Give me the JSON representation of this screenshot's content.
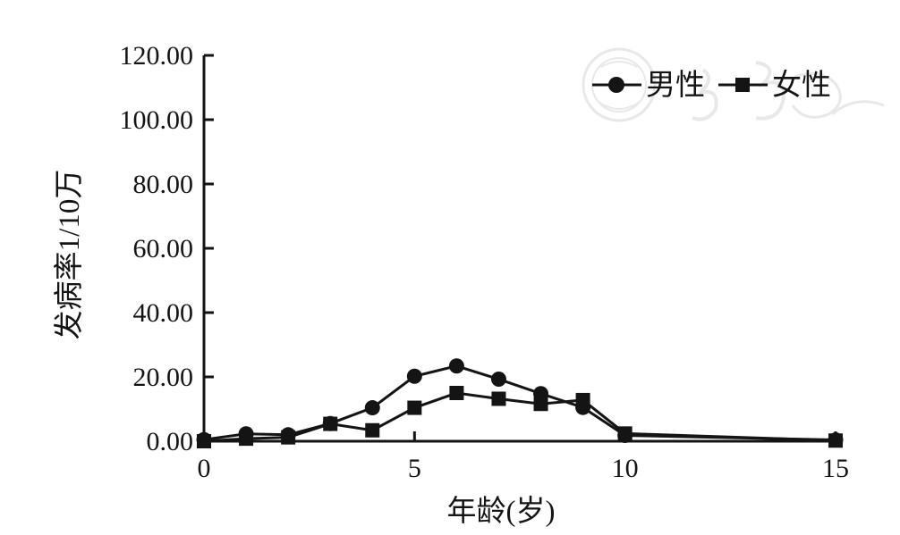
{
  "chart_data": {
    "type": "line",
    "title": "",
    "xlabel": "年龄(岁)",
    "ylabel": "发病率1/10万",
    "x": [
      0,
      1,
      2,
      3,
      4,
      5,
      6,
      7,
      8,
      9,
      10,
      15
    ],
    "series": [
      {
        "name": "男性",
        "marker": "circle",
        "color": "#141414",
        "values": [
          0.5,
          2.3,
          2.0,
          5.5,
          10.4,
          20.2,
          23.4,
          19.3,
          14.8,
          10.5,
          1.8,
          0.4
        ]
      },
      {
        "name": "女性",
        "marker": "square",
        "color": "#141414",
        "values": [
          0.0,
          0.8,
          1.2,
          5.4,
          3.4,
          10.4,
          15.0,
          13.2,
          11.6,
          12.8,
          2.4,
          0.2
        ]
      }
    ],
    "xlim": [
      0,
      15
    ],
    "ylim": [
      0,
      120
    ],
    "x_ticks": [
      0,
      5,
      10,
      15
    ],
    "y_ticks": [
      0,
      20,
      40,
      60,
      80,
      100,
      120
    ],
    "y_tick_decimals": 2,
    "grid": false,
    "legend_position": "top-right",
    "axis_color": "#141414",
    "background_color": "#ffffff"
  },
  "decorations": {
    "watermark_present": true,
    "watermark_color": "#d6d6d6"
  }
}
